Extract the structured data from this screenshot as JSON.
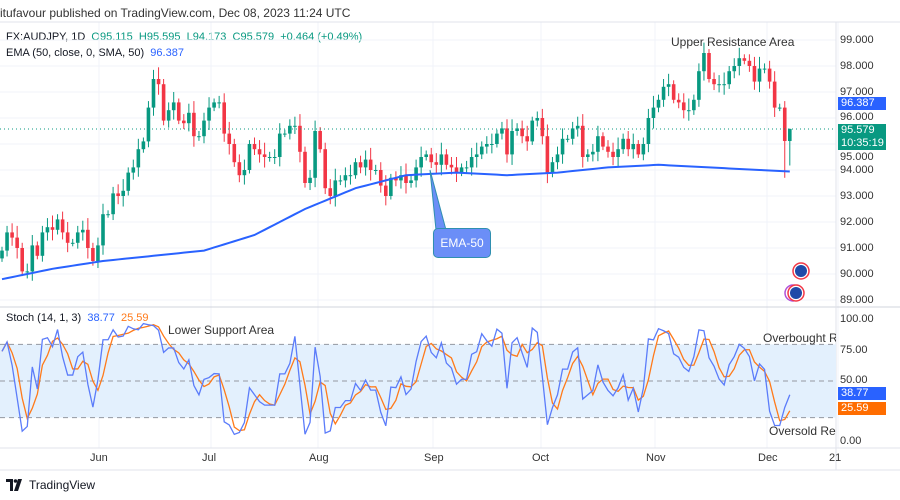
{
  "publisher": "itufavour published on TradingView.com, Dec 08, 2023 11:24 UTC",
  "legend": {
    "symbol": "FX:AUDJPY, 1D",
    "open": "O95.115",
    "high": "H95.595",
    "low": "L94.173",
    "close": "C95.579",
    "change": "+0.464 (+0.49%)",
    "ema_label": "EMA (50, close, 0, SMA, 50)",
    "ema_value": "96.387"
  },
  "stoch_legend": {
    "label": "Stoch (14, 1, 3)",
    "k": "38.77",
    "d": "25.59"
  },
  "annotations": {
    "upper": "Upper Resistance Area",
    "lower": "Lower Support Area",
    "overbought": "Overbought Regi",
    "oversold": "Oversold Regi",
    "ema_callout": "EMA-50"
  },
  "price_tags": {
    "ema": "96.387",
    "last": "95.579",
    "countdown": "10:35:19",
    "k": "38.77",
    "d": "25.59"
  },
  "footer": {
    "brand": "TradingView"
  },
  "colors": {
    "up": "#089981",
    "down": "#f23645",
    "ema": "#2962ff",
    "stoch_k": "#5b7cfa",
    "stoch_d": "#ff7a1a",
    "band": "#e3f0fd"
  },
  "chart_data": [
    {
      "type": "candlestick",
      "symbol": "FX:AUDJPY",
      "interval": "1D",
      "ylim": [
        89,
        99
      ],
      "y_ticks": [
        "99.000",
        "98.000",
        "97.000",
        "96.000",
        "95.000",
        "94.000",
        "93.000",
        "92.000",
        "91.000",
        "90.000",
        "89.000"
      ],
      "x_ticks": [
        "Jun",
        "Jul",
        "Aug",
        "Sep",
        "Oct",
        "Nov",
        "Dec",
        "21"
      ],
      "grid": true,
      "closes": [
        90.9,
        91.6,
        91.4,
        91.0,
        90.1,
        90.1,
        91.1,
        90.7,
        91.6,
        91.8,
        91.7,
        92.1,
        91.6,
        91.2,
        91.2,
        91.6,
        91.7,
        91.0,
        90.5,
        91.1,
        92.3,
        92.3,
        93.1,
        93.0,
        93.2,
        93.9,
        94.1,
        94.8,
        95.1,
        96.4,
        97.5,
        97.3,
        95.9,
        96.3,
        96.6,
        95.9,
        95.8,
        96.2,
        95.3,
        95.3,
        95.9,
        96.4,
        96.6,
        96.6,
        95.4,
        95.0,
        94.3,
        93.8,
        94.0,
        95.0,
        94.8,
        94.6,
        94.5,
        94.5,
        94.5,
        95.4,
        95.4,
        95.7,
        95.7,
        94.7,
        93.5,
        93.7,
        95.5,
        94.8,
        93.3,
        93.0,
        93.6,
        93.6,
        93.8,
        93.8,
        94.3,
        94.1,
        94.4,
        94.0,
        94.0,
        93.4,
        93.0,
        93.7,
        93.6,
        93.8,
        93.5,
        93.6,
        94.1,
        94.5,
        94.6,
        94.3,
        94.2,
        94.6,
        94.2,
        94.1,
        93.9,
        94.1,
        94.1,
        94.5,
        94.6,
        94.9,
        95.0,
        95.0,
        95.4,
        95.6,
        94.6,
        95.5,
        95.6,
        95.3,
        95.1,
        95.9,
        96.0,
        95.3,
        93.9,
        94.3,
        94.6,
        95.2,
        95.2,
        95.6,
        95.7,
        94.5,
        94.6,
        94.7,
        95.3,
        94.9,
        94.7,
        94.5,
        94.8,
        95.2,
        94.8,
        95.0,
        94.6,
        95.0,
        96.0,
        96.4,
        96.7,
        97.2,
        97.3,
        96.7,
        96.6,
        96.3,
        96.3,
        96.7,
        97.8,
        98.5,
        97.5,
        97.3,
        97.3,
        97.3,
        97.8,
        98.0,
        98.3,
        98.2,
        98.0,
        97.4,
        97.9,
        97.9,
        97.4,
        96.4,
        96.4,
        95.115,
        95.579
      ],
      "last_candle": {
        "open": 95.115,
        "high": 95.595,
        "low": 94.173,
        "close": 95.579
      },
      "ema50_every_10": [
        89.8,
        90.2,
        90.5,
        90.7,
        90.9,
        91.5,
        92.5,
        93.3,
        93.8,
        93.9,
        93.8,
        93.9,
        94.1,
        94.2,
        94.1,
        94.0,
        93.9,
        93.9,
        94.0,
        94.2,
        94.4,
        94.5,
        94.6,
        94.6,
        94.7,
        94.8,
        95.2,
        95.6,
        95.9,
        96.1,
        96.5,
        96.4,
        96.387
      ],
      "last_price": 95.579,
      "ema_last": 96.387
    },
    {
      "type": "line",
      "indicator": "Stoch (14, 1, 3)",
      "ylim": [
        0,
        100
      ],
      "y_ticks": [
        "100.00",
        "75.00",
        "50.00",
        "0.00"
      ],
      "bands": [
        20,
        50,
        80
      ],
      "k_last": 38.77,
      "d_last": 25.59
    }
  ]
}
